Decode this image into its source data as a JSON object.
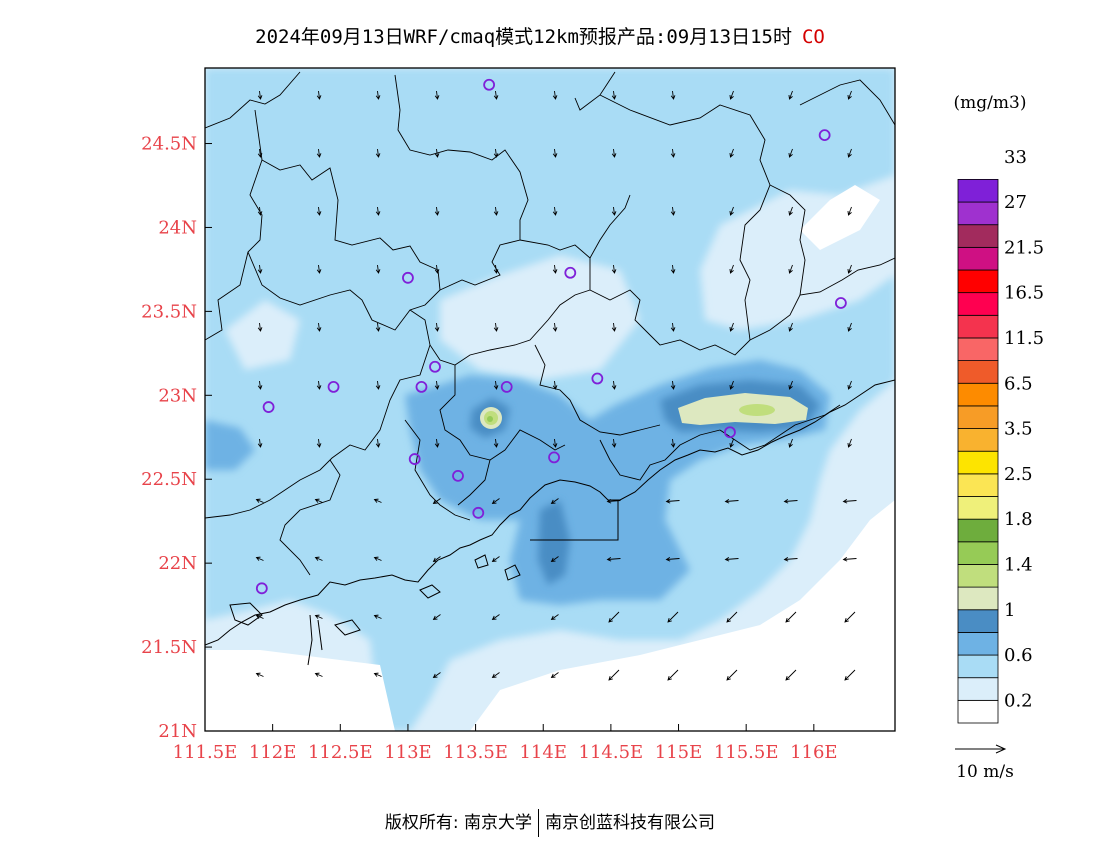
{
  "title": {
    "main": "2024年09月13日WRF/cmaq模式12km预报产品:09月13日15时",
    "pollutant": "CO"
  },
  "map": {
    "lon_range": [
      111.5,
      116.6
    ],
    "lat_range": [
      21.0,
      24.95
    ],
    "x_ticks": [
      {
        "value": 111.5,
        "label": "111.5E"
      },
      {
        "value": 112.0,
        "label": "112E"
      },
      {
        "value": 112.5,
        "label": "112.5E"
      },
      {
        "value": 113.0,
        "label": "113E"
      },
      {
        "value": 113.5,
        "label": "113.5E"
      },
      {
        "value": 114.0,
        "label": "114E"
      },
      {
        "value": 114.5,
        "label": "114.5E"
      },
      {
        "value": 115.0,
        "label": "115E"
      },
      {
        "value": 115.5,
        "label": "115.5E"
      },
      {
        "value": 116.0,
        "label": "116E"
      }
    ],
    "y_ticks": [
      {
        "value": 21.0,
        "label": "21N"
      },
      {
        "value": 21.5,
        "label": "21.5N"
      },
      {
        "value": 22.0,
        "label": "22N"
      },
      {
        "value": 22.5,
        "label": "22.5N"
      },
      {
        "value": 23.0,
        "label": "23N"
      },
      {
        "value": 23.5,
        "label": "23.5N"
      },
      {
        "value": 24.0,
        "label": "24N"
      },
      {
        "value": 24.5,
        "label": "24.5N"
      }
    ],
    "tick_color": "#e8434a",
    "stations": [
      [
        113.6,
        24.85
      ],
      [
        116.08,
        24.55
      ],
      [
        113.0,
        23.7
      ],
      [
        114.2,
        23.73
      ],
      [
        116.2,
        23.55
      ],
      [
        113.2,
        23.17
      ],
      [
        113.1,
        23.05
      ],
      [
        112.45,
        23.05
      ],
      [
        111.97,
        22.93
      ],
      [
        113.73,
        23.05
      ],
      [
        114.4,
        23.1
      ],
      [
        113.05,
        22.62
      ],
      [
        113.37,
        22.52
      ],
      [
        114.08,
        22.63
      ],
      [
        115.38,
        22.78
      ],
      [
        113.52,
        22.3
      ],
      [
        111.92,
        21.85
      ]
    ]
  },
  "legend": {
    "unit": "(mg/m3)",
    "colors": [
      "#ffffff",
      "#dbeefa",
      "#a9dcf5",
      "#6eb2e4",
      "#4a8dc4",
      "#dde8c0",
      "#c0de7d",
      "#96cb56",
      "#6ead3d",
      "#eff07a",
      "#fbe554",
      "#fde400",
      "#f9b22f",
      "#f79c26",
      "#fd8b00",
      "#ef5b2a",
      "#f96666",
      "#f4334e",
      "#ff0050",
      "#ff0000",
      "#cf1083",
      "#a22b5d",
      "#9f31cf",
      "#7f20d8"
    ],
    "labels": [
      {
        "index": 1,
        "text": "0.2"
      },
      {
        "index": 3,
        "text": "0.6"
      },
      {
        "index": 5,
        "text": "1"
      },
      {
        "index": 7,
        "text": "1.4"
      },
      {
        "index": 9,
        "text": "1.8"
      },
      {
        "index": 11,
        "text": "2.5"
      },
      {
        "index": 13,
        "text": "3.5"
      },
      {
        "index": 15,
        "text": "6.5"
      },
      {
        "index": 17,
        "text": "11.5"
      },
      {
        "index": 19,
        "text": "16.5"
      },
      {
        "index": 21,
        "text": "21.5"
      },
      {
        "index": 23,
        "text": "27"
      },
      {
        "index": 25,
        "text": "33"
      }
    ]
  },
  "wind_reference": {
    "label": "10 m/s"
  },
  "footer": {
    "copyright": "版权所有: 南京大学",
    "company": "南京创蓝科技有限公司"
  }
}
